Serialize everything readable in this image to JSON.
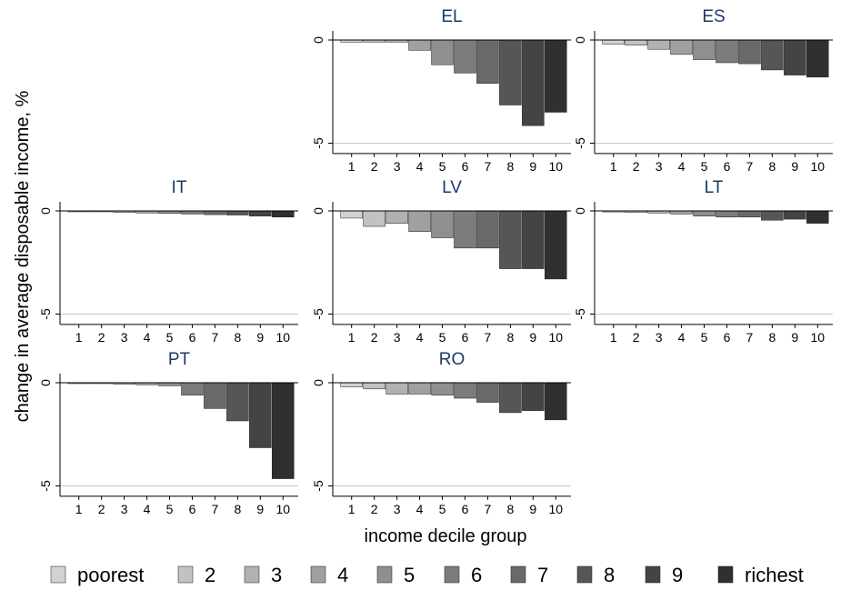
{
  "chart_data": {
    "type": "bar",
    "ylabel": "change in average disposable income, %",
    "xlabel": "income decile group",
    "categories": [
      "1",
      "2",
      "3",
      "4",
      "5",
      "6",
      "7",
      "8",
      "9",
      "10"
    ],
    "yticks": [
      "0",
      "-5"
    ],
    "ylim": [
      -5.5,
      0.5
    ],
    "grid": "horizontal line at -5",
    "legend_position": "bottom",
    "legend": [
      "poorest",
      "2",
      "3",
      "4",
      "5",
      "6",
      "7",
      "8",
      "9",
      "richest"
    ],
    "colors": [
      "#d2d2d2",
      "#c2c2c2",
      "#b1b1b1",
      "#a0a0a0",
      "#8f8f8f",
      "#7c7c7c",
      "#696969",
      "#565656",
      "#444444",
      "#303030"
    ],
    "panels": [
      {
        "title": "EL",
        "values": [
          -0.1,
          -0.1,
          -0.1,
          -0.5,
          -1.2,
          -1.6,
          -2.1,
          -3.15,
          -4.15,
          -3.5
        ]
      },
      {
        "title": "ES",
        "values": [
          -0.2,
          -0.25,
          -0.45,
          -0.7,
          -0.95,
          -1.1,
          -1.15,
          -1.45,
          -1.7,
          -1.8
        ]
      },
      {
        "title": "IT",
        "values": [
          -0.02,
          -0.03,
          -0.07,
          -0.1,
          -0.12,
          -0.15,
          -0.18,
          -0.2,
          -0.25,
          -0.3
        ]
      },
      {
        "title": "LV",
        "values": [
          -0.35,
          -0.75,
          -0.6,
          -1.0,
          -1.3,
          -1.8,
          -1.8,
          -2.8,
          -2.8,
          -3.3
        ]
      },
      {
        "title": "LT",
        "values": [
          -0.05,
          -0.08,
          -0.1,
          -0.15,
          -0.25,
          -0.3,
          -0.3,
          -0.45,
          -0.4,
          -0.6
        ]
      },
      {
        "title": "PT",
        "values": [
          -0.03,
          -0.04,
          -0.07,
          -0.1,
          -0.15,
          -0.6,
          -1.25,
          -1.85,
          -3.15,
          -4.65
        ]
      },
      {
        "title": "RO",
        "values": [
          -0.2,
          -0.3,
          -0.55,
          -0.55,
          -0.6,
          -0.75,
          -0.95,
          -1.45,
          -1.35,
          -1.8
        ]
      }
    ]
  }
}
